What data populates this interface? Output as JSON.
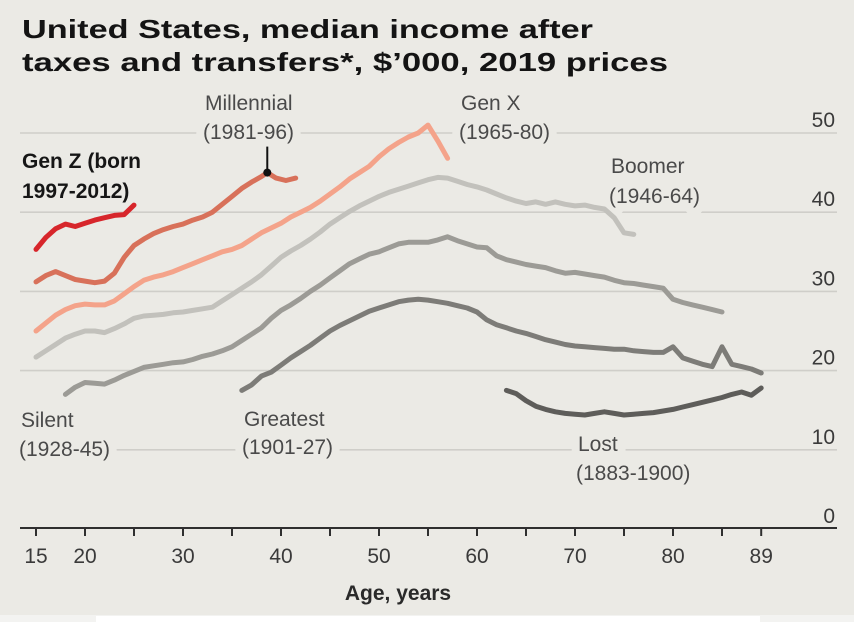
{
  "title": {
    "line1": "United States, median income after",
    "line2": "taxes and transfers*, $’000, 2019 prices"
  },
  "chart_data": {
    "type": "line",
    "title": "United States, median income after taxes and transfers*, $’000, 2019 prices",
    "xlabel": "Age, years",
    "ylabel": "",
    "xlim": [
      15,
      89
    ],
    "ylim": [
      0,
      50
    ],
    "grid": true,
    "legend": "inline-labels",
    "xtick_marks": [
      15,
      20,
      25,
      30,
      35,
      40,
      45,
      50,
      55,
      60,
      65,
      70,
      75,
      80,
      85,
      89
    ],
    "xtick_labels": [
      15,
      20,
      30,
      40,
      50,
      60,
      70,
      80,
      89
    ],
    "yticks": [
      0,
      10,
      20,
      30,
      40,
      50
    ],
    "ytick_position": "right",
    "series": [
      {
        "name": "Gen Z",
        "label_lines": [
          "Gen Z (born",
          "1997-2012)"
        ],
        "color": "#d7262b",
        "x": [
          15,
          16,
          17,
          18,
          19,
          20,
          21,
          22,
          23,
          24,
          25
        ],
        "y": [
          35.3,
          36.8,
          37.9,
          38.5,
          38.2,
          38.6,
          39.0,
          39.3,
          39.6,
          39.7,
          40.9
        ]
      },
      {
        "name": "Millennial",
        "label_lines": [
          "Millennial",
          "(1981-96)"
        ],
        "color": "#d8715a",
        "x": [
          15,
          16,
          17,
          18,
          19,
          20,
          21,
          22,
          23,
          24,
          25,
          26,
          27,
          28,
          29,
          30,
          31,
          32,
          33,
          34,
          35,
          36,
          37,
          38,
          38.6,
          39.5,
          40.5,
          41.5
        ],
        "y": [
          31.2,
          32.0,
          32.5,
          32.0,
          31.5,
          31.3,
          31.1,
          31.3,
          32.3,
          34.3,
          35.8,
          36.6,
          37.3,
          37.8,
          38.2,
          38.5,
          39.0,
          39.4,
          40.0,
          41.0,
          42.0,
          43.0,
          43.8,
          44.5,
          45.0,
          44.3,
          44.0,
          44.3
        ]
      },
      {
        "name": "Gen X",
        "label_lines": [
          "Gen X",
          "(1965-80)"
        ],
        "color": "#f4a38a",
        "x": [
          15,
          16,
          17,
          18,
          19,
          20,
          21,
          22,
          23,
          24,
          25,
          26,
          27,
          28,
          29,
          30,
          31,
          32,
          33,
          34,
          35,
          36,
          37,
          38,
          39,
          40,
          41,
          42,
          43,
          44,
          45,
          46,
          47,
          48,
          49,
          50,
          51,
          52,
          53,
          54,
          55,
          56,
          57
        ],
        "y": [
          25.0,
          26.0,
          27.0,
          27.7,
          28.2,
          28.4,
          28.3,
          28.3,
          28.8,
          29.7,
          30.6,
          31.4,
          31.8,
          32.1,
          32.5,
          33.0,
          33.5,
          34.0,
          34.5,
          35.0,
          35.3,
          35.8,
          36.6,
          37.4,
          38.0,
          38.6,
          39.4,
          40.0,
          40.6,
          41.4,
          42.3,
          43.2,
          44.2,
          45.0,
          45.8,
          47.0,
          48.0,
          48.8,
          49.5,
          50.0,
          51.0,
          49.0,
          46.8
        ]
      },
      {
        "name": "Boomer",
        "label_lines": [
          "Boomer",
          "(1946-64)"
        ],
        "color": "#c2c1bc",
        "x": [
          15,
          16,
          17,
          18,
          19,
          20,
          21,
          22,
          23,
          24,
          25,
          26,
          27,
          28,
          29,
          30,
          31,
          32,
          33,
          34,
          35,
          36,
          37,
          38,
          39,
          40,
          41,
          42,
          43,
          44,
          45,
          46,
          47,
          48,
          49,
          50,
          51,
          52,
          53,
          54,
          55,
          56,
          57,
          58,
          59,
          60,
          61,
          62,
          63,
          64,
          65,
          66,
          67,
          68,
          69,
          70,
          71,
          72,
          73,
          74,
          75,
          76
        ],
        "y": [
          21.7,
          22.5,
          23.3,
          24.1,
          24.6,
          25.0,
          25.0,
          24.8,
          25.3,
          25.9,
          26.6,
          26.9,
          27.0,
          27.1,
          27.3,
          27.4,
          27.6,
          27.8,
          28.0,
          28.8,
          29.6,
          30.4,
          31.2,
          32.1,
          33.2,
          34.3,
          35.1,
          35.8,
          36.6,
          37.5,
          38.5,
          39.3,
          40.1,
          40.8,
          41.4,
          42.0,
          42.5,
          42.9,
          43.3,
          43.7,
          44.1,
          44.4,
          44.3,
          43.9,
          43.5,
          43.2,
          42.8,
          42.3,
          41.8,
          41.4,
          41.1,
          41.3,
          41.0,
          41.3,
          41.0,
          40.8,
          40.9,
          40.6,
          40.4,
          39.3,
          37.4,
          37.2
        ]
      },
      {
        "name": "Silent",
        "label_lines": [
          "Silent",
          "(1928-45)"
        ],
        "color": "#9c9b96",
        "x": [
          18,
          19,
          20,
          21,
          22,
          23,
          24,
          25,
          26,
          27,
          28,
          29,
          30,
          31,
          32,
          33,
          34,
          35,
          36,
          37,
          38,
          39,
          40,
          41,
          42,
          43,
          44,
          45,
          46,
          47,
          48,
          49,
          50,
          51,
          52,
          53,
          54,
          55,
          56,
          57,
          58,
          59,
          60,
          61,
          62,
          63,
          64,
          65,
          66,
          67,
          68,
          69,
          70,
          71,
          72,
          73,
          74,
          75,
          76,
          77,
          78,
          79,
          80,
          81,
          82,
          83,
          84,
          85
        ],
        "y": [
          17.0,
          17.9,
          18.5,
          18.4,
          18.3,
          18.8,
          19.4,
          19.9,
          20.4,
          20.6,
          20.8,
          21.0,
          21.1,
          21.4,
          21.8,
          22.1,
          22.5,
          23.0,
          23.8,
          24.6,
          25.4,
          26.6,
          27.6,
          28.3,
          29.1,
          30.0,
          30.8,
          31.7,
          32.6,
          33.5,
          34.1,
          34.7,
          35.0,
          35.5,
          36.0,
          36.2,
          36.2,
          36.2,
          36.5,
          36.9,
          36.4,
          36.0,
          35.6,
          35.5,
          34.5,
          34.0,
          33.7,
          33.4,
          33.2,
          33.0,
          32.6,
          32.3,
          32.4,
          32.2,
          32.0,
          31.8,
          31.4,
          31.1,
          31.0,
          30.8,
          30.6,
          30.4,
          29.0,
          28.6,
          28.3,
          28.0,
          27.7,
          27.4
        ]
      },
      {
        "name": "Greatest",
        "label_lines": [
          "Greatest",
          "(1901-27)"
        ],
        "color": "#7d7c78",
        "x": [
          36,
          37,
          38,
          39,
          40,
          41,
          42,
          43,
          44,
          45,
          46,
          47,
          48,
          49,
          50,
          51,
          52,
          53,
          54,
          55,
          56,
          57,
          58,
          59,
          60,
          61,
          62,
          63,
          64,
          65,
          66,
          67,
          68,
          69,
          70,
          71,
          72,
          73,
          74,
          75,
          76,
          77,
          78,
          79,
          80,
          81,
          82,
          83,
          84,
          85,
          86,
          87,
          88,
          89
        ],
        "y": [
          17.5,
          18.2,
          19.3,
          19.8,
          20.7,
          21.6,
          22.4,
          23.2,
          24.1,
          25.0,
          25.7,
          26.3,
          26.9,
          27.5,
          27.9,
          28.3,
          28.7,
          28.9,
          29.0,
          28.9,
          28.7,
          28.5,
          28.2,
          27.9,
          27.4,
          26.4,
          25.8,
          25.4,
          25.0,
          24.7,
          24.3,
          23.9,
          23.6,
          23.3,
          23.1,
          23.0,
          22.9,
          22.8,
          22.7,
          22.7,
          22.5,
          22.4,
          22.3,
          22.3,
          23.0,
          21.6,
          21.2,
          20.8,
          20.5,
          23.0,
          20.8,
          20.5,
          20.2,
          19.7
        ]
      },
      {
        "name": "Lost",
        "label_lines": [
          "Lost",
          "(1883-1900)"
        ],
        "color": "#5e5d5a",
        "x": [
          63,
          64,
          65,
          66,
          67,
          68,
          69,
          70,
          71,
          72,
          73,
          74,
          75,
          76,
          77,
          78,
          79,
          80,
          81,
          82,
          83,
          84,
          85,
          86,
          87,
          88,
          89
        ],
        "y": [
          17.5,
          17.1,
          16.2,
          15.5,
          15.1,
          14.8,
          14.6,
          14.5,
          14.4,
          14.6,
          14.8,
          14.6,
          14.4,
          14.5,
          14.6,
          14.7,
          14.9,
          15.1,
          15.4,
          15.7,
          16.0,
          16.3,
          16.6,
          17.0,
          17.3,
          16.9,
          17.8
        ]
      }
    ],
    "annotations": [
      {
        "type": "marker",
        "series": "Millennial",
        "x": 38.6,
        "y": 45.0,
        "color": "#111111"
      }
    ]
  }
}
